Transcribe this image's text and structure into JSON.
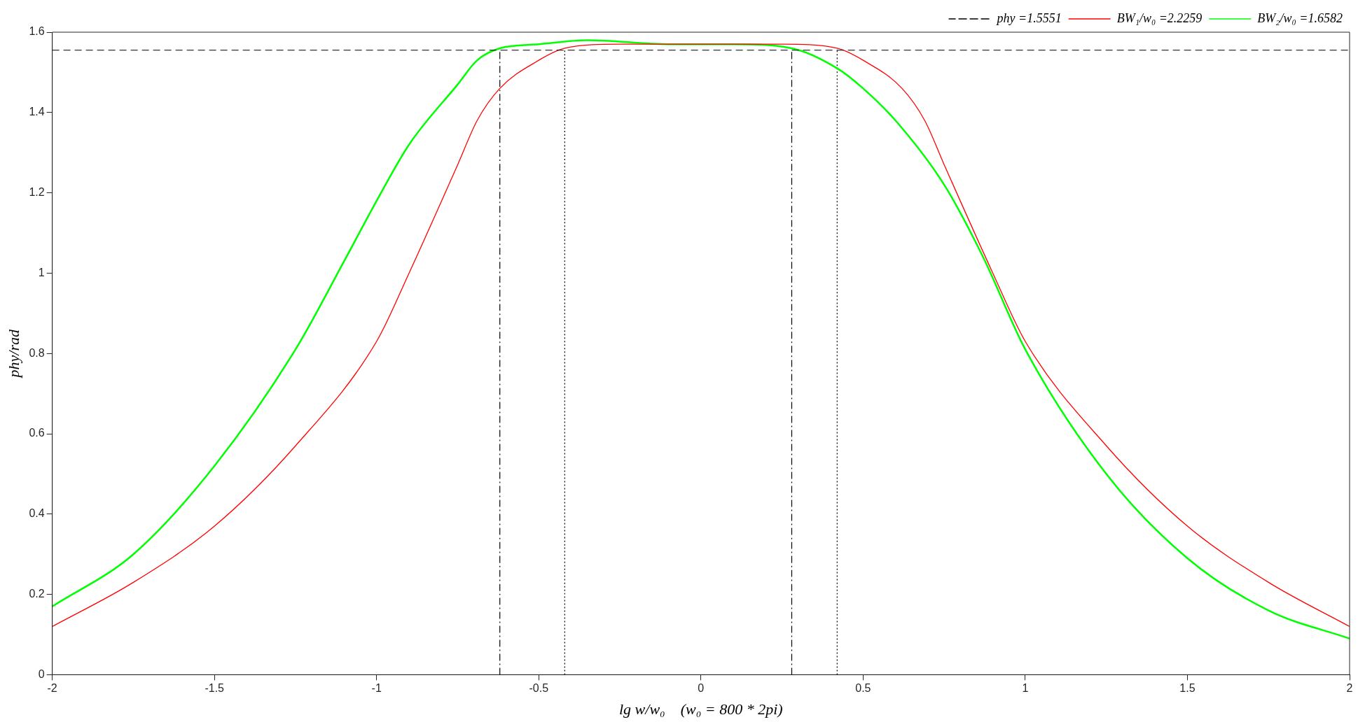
{
  "chart_data": {
    "type": "line",
    "xlabel": "lg w/w₀    (w₀ = 800 * 2pi)",
    "ylabel": "phy/rad",
    "xlim": [
      -2,
      2
    ],
    "xticks": [
      -2,
      -1.5,
      -1,
      -0.5,
      0,
      0.5,
      1,
      1.5,
      2
    ],
    "ylim": [
      0,
      1.6
    ],
    "yticks": [
      0,
      0.2,
      0.4,
      0.6,
      0.8,
      1,
      1.2,
      1.4,
      1.6
    ],
    "grid": false,
    "legend": "top right",
    "marker": "none",
    "ref_lines": [
      {
        "axis": "y",
        "value": 1.5551,
        "label": "phy =1.5551",
        "color": "#000000",
        "line_style": "dashed"
      }
    ],
    "series": [
      {
        "name": "BW₁/w₀ =2.2259",
        "color": "#ff0000",
        "line_style": "solid",
        "x": [
          -2,
          -1.75,
          -1.5,
          -1.25,
          -1,
          -0.9,
          -0.75,
          -0.69,
          -0.62,
          -0.5,
          -0.42,
          -0.25,
          0.25,
          0.42,
          0.5,
          0.62,
          0.69,
          0.75,
          0.9,
          1,
          1.25,
          1.5,
          1.75,
          2
        ],
        "values": [
          0.12,
          0.23,
          0.37,
          0.57,
          0.83,
          1.0,
          1.27,
          1.38,
          1.46,
          1.53,
          1.56,
          1.57,
          1.57,
          1.56,
          1.53,
          1.46,
          1.38,
          1.27,
          1.0,
          0.83,
          0.57,
          0.37,
          0.23,
          0.12
        ]
      },
      {
        "name": "BW₂/w₀ =1.6582",
        "color": "#00ff00",
        "line_style": "solid",
        "x": [
          -2,
          -1.75,
          -1.5,
          -1.25,
          -1.1,
          -1,
          -0.9,
          -0.75,
          -0.69,
          -0.62,
          -0.5,
          -0.35,
          -0.1,
          0.1,
          0.28,
          0.42,
          0.5,
          0.6,
          0.75,
          0.87,
          1,
          1.25,
          1.5,
          1.75,
          2
        ],
        "values": [
          0.17,
          0.3,
          0.52,
          0.81,
          1.03,
          1.18,
          1.32,
          1.47,
          1.53,
          1.56,
          1.57,
          1.58,
          1.57,
          1.57,
          1.56,
          1.51,
          1.46,
          1.38,
          1.22,
          1.04,
          0.81,
          0.5,
          0.29,
          0.16,
          0.09
        ]
      },
      {
        "color": "#000000",
        "line_style": "dashdot",
        "x": [
          -0.62,
          -0.62
        ],
        "values": [
          0,
          1.56
        ]
      },
      {
        "color": "#000000",
        "line_style": "dashdot",
        "x": [
          0.28,
          0.28
        ],
        "values": [
          0,
          1.56
        ]
      },
      {
        "color": "#000000",
        "line_style": "dotted",
        "x": [
          -0.42,
          -0.42
        ],
        "values": [
          0,
          1.56
        ]
      },
      {
        "color": "#000000",
        "line_style": "dotted",
        "x": [
          0.42,
          0.42
        ],
        "values": [
          0,
          1.56
        ]
      }
    ]
  }
}
